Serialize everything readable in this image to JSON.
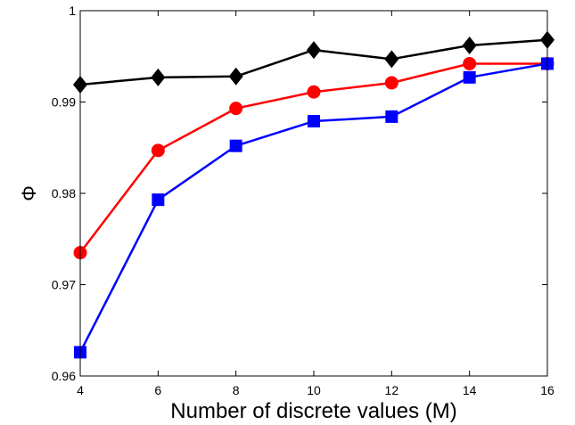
{
  "chart_data": {
    "type": "line",
    "title": "",
    "xlabel": "Number of discrete values (M)",
    "ylabel": "Φ",
    "x": [
      4,
      6,
      8,
      10,
      12,
      14,
      16
    ],
    "xlim": [
      4,
      16
    ],
    "ylim": [
      0.96,
      1
    ],
    "xticks": [
      "4",
      "6",
      "8",
      "10",
      "12",
      "14",
      "16"
    ],
    "yticks": [
      "0.96",
      "0.97",
      "0.98",
      "0.99",
      "1"
    ],
    "grid": false,
    "legend": "none",
    "series": [
      {
        "color": "#000000",
        "marker": "diamond",
        "values": [
          0.9919,
          0.9927,
          0.9928,
          0.9957,
          0.9947,
          0.9962,
          0.9968
        ]
      },
      {
        "color": "#ff0000",
        "marker": "circle",
        "values": [
          0.9735,
          0.9847,
          0.9893,
          0.9911,
          0.9921,
          0.9942,
          0.9942
        ]
      },
      {
        "color": "#0000ff",
        "marker": "square",
        "values": [
          0.9626,
          0.9793,
          0.9852,
          0.9879,
          0.9884,
          0.9927,
          0.9942
        ]
      }
    ]
  }
}
